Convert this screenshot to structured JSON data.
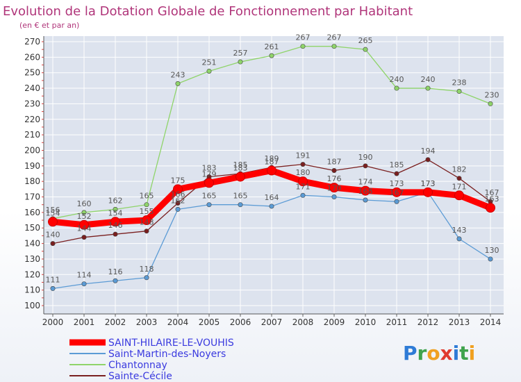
{
  "chart_data": {
    "type": "line",
    "title": "Evolution de la Dotation Globale de Fonctionnement par Habitant",
    "subtitle": "(en € et par an)",
    "x": [
      "2000",
      "2001",
      "2002",
      "2003",
      "2004",
      "2005",
      "2006",
      "2007",
      "2008",
      "2009",
      "2010",
      "2011",
      "2012",
      "2013",
      "2014"
    ],
    "ylim": [
      100,
      270
    ],
    "yticks": [
      100,
      110,
      120,
      130,
      140,
      150,
      160,
      170,
      180,
      190,
      200,
      210,
      220,
      230,
      240,
      250,
      260,
      270
    ],
    "legend_position": "bottom-left",
    "series": [
      {
        "name": "SAINT-HILAIRE-LE-VOUHIS",
        "color": "#ff0000",
        "values": [
          154,
          152,
          154,
          155,
          175,
          179,
          183,
          187,
          180,
          176,
          174,
          173,
          173,
          171,
          163
        ]
      },
      {
        "name": "Saint-Martin-des-Noyers",
        "color": "#5b9bd5",
        "values": [
          111,
          114,
          116,
          118,
          162,
          165,
          165,
          164,
          171,
          170,
          168,
          167,
          173,
          143,
          130
        ]
      },
      {
        "name": "Chantonnay",
        "color": "#8fd46a",
        "values": [
          156,
          160,
          162,
          165,
          243,
          251,
          257,
          261,
          267,
          267,
          265,
          240,
          240,
          238,
          230
        ]
      },
      {
        "name": "Sainte-Cécile",
        "color": "#7a1f1f",
        "values": [
          140,
          144,
          146,
          148,
          166,
          183,
          185,
          189,
          191,
          187,
          190,
          185,
          194,
          182,
          167
        ]
      }
    ]
  },
  "brand": {
    "logo_text": "Proxiti"
  }
}
